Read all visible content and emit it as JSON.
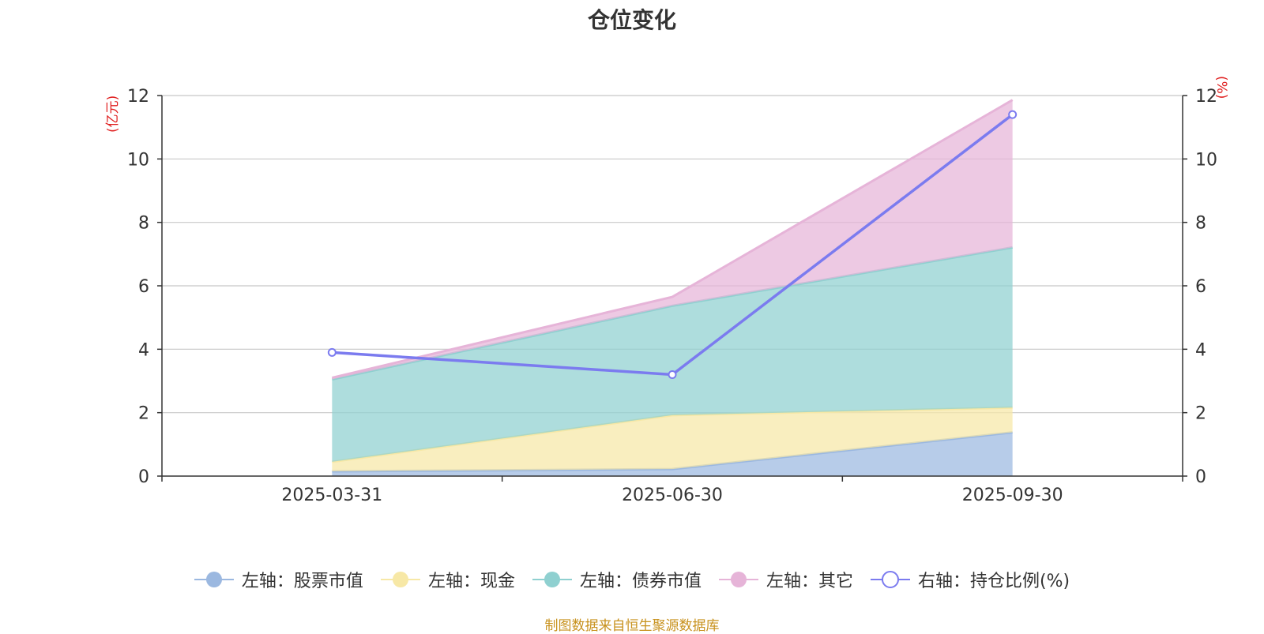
{
  "title": "仓位变化",
  "source": "制图数据来自恒生聚源数据库",
  "chart_data": {
    "type": "area",
    "title": "仓位变化",
    "categories": [
      "2025-03-31",
      "2025-06-30",
      "2025-09-30"
    ],
    "left_axis": {
      "unit_label": "(亿元)",
      "ylim": [
        0,
        12
      ],
      "ticks": [
        "0",
        "2",
        "4",
        "6",
        "8",
        "10",
        "12"
      ]
    },
    "right_axis": {
      "unit_label": "(%)",
      "ylim": [
        0,
        12
      ],
      "ticks": [
        "0",
        "2",
        "4",
        "6",
        "8",
        "10",
        "12"
      ]
    },
    "stacked": true,
    "series": [
      {
        "name": "左轴：股票市值",
        "axis": "left",
        "type": "area",
        "values": [
          0.15,
          0.22,
          1.38
        ],
        "color": "#9bb8e0"
      },
      {
        "name": "左轴：现金",
        "axis": "left",
        "type": "area",
        "values": [
          0.3,
          1.7,
          0.78
        ],
        "color": "#f7e8a6"
      },
      {
        "name": "左轴：债券市值",
        "axis": "left",
        "type": "area",
        "values": [
          2.6,
          3.45,
          5.05
        ],
        "color": "#8fd0d0"
      },
      {
        "name": "左轴：其它",
        "axis": "left",
        "type": "area",
        "values": [
          0.05,
          0.28,
          4.65
        ],
        "color": "#e6b4d8"
      },
      {
        "name": "右轴：持仓比例(%)",
        "axis": "right",
        "type": "line",
        "values": [
          3.9,
          3.2,
          11.4
        ],
        "color": "#7b7bef"
      }
    ],
    "grid": true,
    "legend_position": "bottom"
  }
}
